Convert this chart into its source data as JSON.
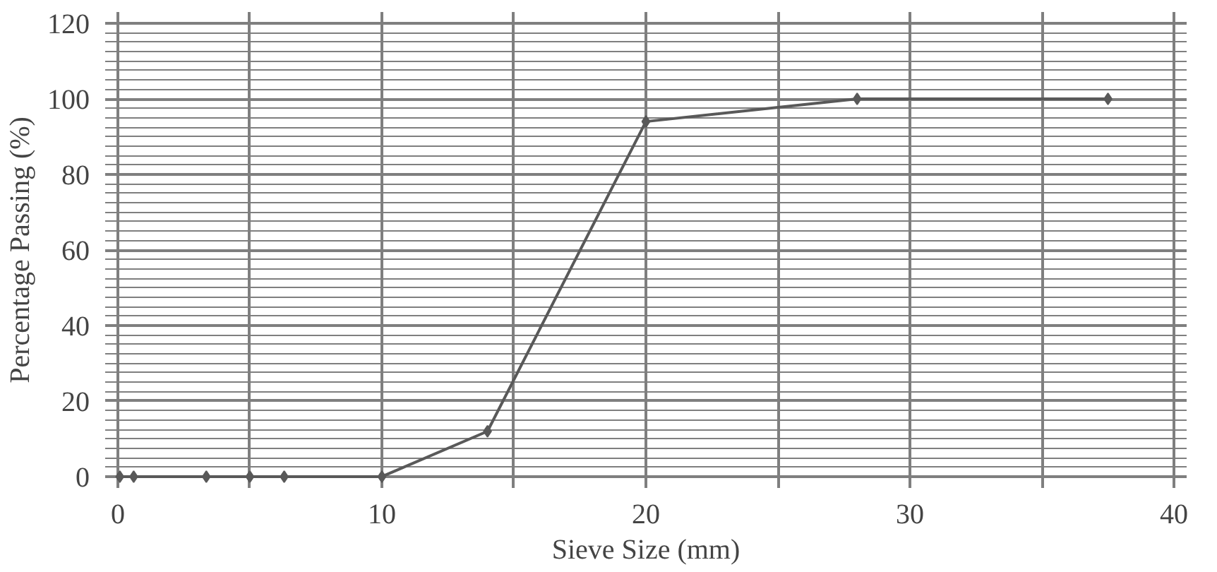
{
  "chart_data": {
    "type": "line",
    "xlabel": "Sieve Size (mm)",
    "ylabel": "Percentage Passing (%)",
    "x": [
      0.075,
      0.6,
      3.35,
      5,
      6.3,
      10,
      14,
      20,
      28,
      37.5
    ],
    "series": [
      {
        "color": "#595959",
        "values": [
          0,
          0,
          0,
          0,
          0,
          0,
          12,
          94,
          100,
          100
        ]
      }
    ],
    "xlim": [
      0,
      40
    ],
    "xticks": [
      0,
      10,
      20,
      30,
      40
    ],
    "ylim": [
      0,
      120
    ],
    "yticks": [
      0,
      20,
      40,
      60,
      80,
      100,
      120
    ],
    "grid": true,
    "marker": "diamond",
    "line_style": "solid"
  }
}
